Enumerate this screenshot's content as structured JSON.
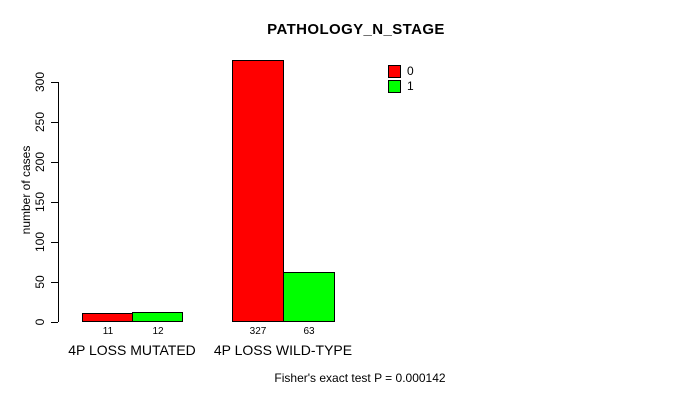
{
  "chart_data": {
    "type": "bar",
    "title": "PATHOLOGY_N_STAGE",
    "ylabel": "number of cases",
    "xlabel": "",
    "categories": [
      "4P LOSS MUTATED",
      "4P LOSS WILD-TYPE"
    ],
    "series": [
      {
        "name": "0",
        "color": "#ff0000",
        "values": [
          11,
          327
        ]
      },
      {
        "name": "1",
        "color": "#00ff00",
        "values": [
          12,
          63
        ]
      }
    ],
    "yticks": [
      0,
      50,
      100,
      150,
      200,
      250,
      300
    ],
    "ylim": [
      0,
      327
    ],
    "grid": false,
    "legend_position": "top-right",
    "bar_border_color": "#000000",
    "annotation": "Fisher's exact test P = 0.000142"
  }
}
